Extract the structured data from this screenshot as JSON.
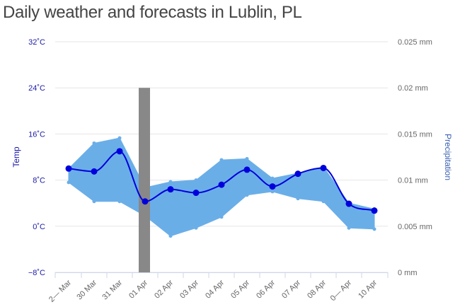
{
  "title": "Daily weather and forecasts in Lublin, PL",
  "chart_data": {
    "type": "line",
    "categories": [
      "2— Mar",
      "30 Mar",
      "31 Mar",
      "01 Apr",
      "02 Apr",
      "03 Apr",
      "04 Apr",
      "05 Apr",
      "06 Apr",
      "07 Apr",
      "08 Apr",
      "0— Apr",
      "10 Apr"
    ],
    "series": [
      {
        "name": "",
        "type": "line",
        "color": "#0000dd",
        "values": [
          10,
          9.5,
          13,
          4.3,
          6.4,
          5.8,
          7.2,
          9.8,
          6.9,
          9.1,
          10.1,
          3.9,
          2.7
        ]
      },
      {
        "name": "",
        "type": "range",
        "color": "#6aaee8",
        "low": [
          7.6,
          4.3,
          4.3,
          1.8,
          -1.7,
          -0.3,
          1.6,
          5.4,
          6.0,
          4.8,
          4.3,
          -0.3,
          -0.5
        ],
        "high": [
          10.0,
          14.4,
          15.3,
          6.7,
          7.7,
          8.0,
          11.5,
          11.7,
          8.3,
          9.2,
          10.3,
          4.0,
          3.0
        ]
      },
      {
        "name": "",
        "type": "bar",
        "axis": "right",
        "color": "#888888",
        "values": [
          0,
          0,
          0,
          0.02,
          0,
          0,
          0,
          0,
          0,
          0,
          0,
          0,
          0
        ]
      }
    ],
    "y_left": {
      "label": "Temp",
      "unit": "°C",
      "range": [
        -8,
        32
      ],
      "ticks": [
        "32˚C",
        "24˚C",
        "16˚C",
        "8˚C",
        "0˚C",
        "−8˚C"
      ]
    },
    "y_right": {
      "label": "Precipitation",
      "unit": "mm",
      "range": [
        0,
        0.025
      ],
      "ticks": [
        "0.025 mm",
        "0.02 mm",
        "0.015 mm",
        "0.01 mm",
        "0.005 mm",
        "0 mm"
      ]
    },
    "grid": true
  }
}
